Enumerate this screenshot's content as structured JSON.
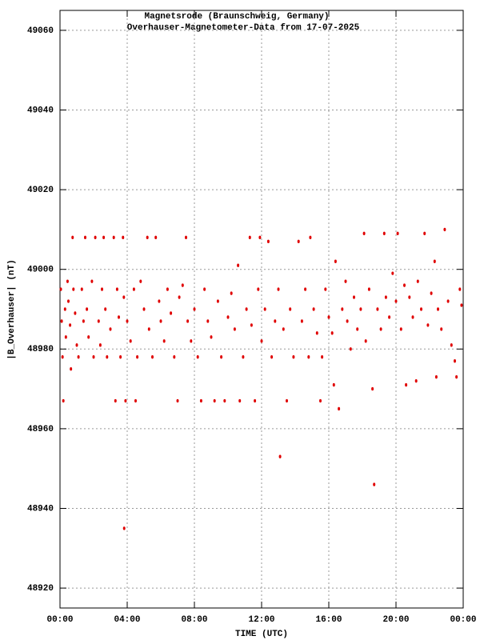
{
  "chart_data": {
    "type": "scatter",
    "title": "Magnetsrode (Braunschweig, Germany)",
    "subtitle": "Overhauser-Magnetometer-Data from 17-07-2025",
    "x_label": "TIME (UTC)",
    "y_label": "|B_Overhauser| (nT)",
    "color": "#e00000",
    "grid": true,
    "xlim": [
      0,
      24
    ],
    "xticks": [
      {
        "value": 0,
        "label": "00:00"
      },
      {
        "value": 4,
        "label": "04:00"
      },
      {
        "value": 8,
        "label": "08:00"
      },
      {
        "value": 12,
        "label": "12:00"
      },
      {
        "value": 16,
        "label": "16:00"
      },
      {
        "value": 20,
        "label": "20:00"
      },
      {
        "value": 24,
        "label": "00:00"
      }
    ],
    "ylim": [
      48915,
      49065
    ],
    "yticks": [
      48920,
      48940,
      48960,
      48980,
      49000,
      49020,
      49040,
      49060
    ],
    "x": [
      0.05,
      0.1,
      0.15,
      0.2,
      0.3,
      0.35,
      0.45,
      0.5,
      0.6,
      0.65,
      0.75,
      0.8,
      0.9,
      1.0,
      1.1,
      1.3,
      1.4,
      1.5,
      1.6,
      1.7,
      1.9,
      2.0,
      2.1,
      2.3,
      2.4,
      2.5,
      2.6,
      2.7,
      2.8,
      3.0,
      3.2,
      3.3,
      3.4,
      3.5,
      3.6,
      3.75,
      3.8,
      3.82,
      3.9,
      4.0,
      4.2,
      4.4,
      4.5,
      4.6,
      4.8,
      5.0,
      5.2,
      5.3,
      5.5,
      5.7,
      5.9,
      6.0,
      6.2,
      6.4,
      6.6,
      6.8,
      7.0,
      7.1,
      7.3,
      7.5,
      7.6,
      7.8,
      8.0,
      8.2,
      8.4,
      8.6,
      8.8,
      9.0,
      9.2,
      9.4,
      9.6,
      9.8,
      10.0,
      10.2,
      10.4,
      10.6,
      10.7,
      10.9,
      11.1,
      11.3,
      11.4,
      11.6,
      11.8,
      11.9,
      12.0,
      12.2,
      12.4,
      12.6,
      12.8,
      13.0,
      13.1,
      13.3,
      13.5,
      13.7,
      13.9,
      14.2,
      14.4,
      14.6,
      14.8,
      14.9,
      15.1,
      15.3,
      15.5,
      15.6,
      15.8,
      16.0,
      16.2,
      16.3,
      16.4,
      16.6,
      16.8,
      17.0,
      17.1,
      17.3,
      17.5,
      17.7,
      17.9,
      18.1,
      18.2,
      18.4,
      18.6,
      18.7,
      18.9,
      19.1,
      19.3,
      19.4,
      19.6,
      19.8,
      20.0,
      20.1,
      20.3,
      20.5,
      20.6,
      20.8,
      21.0,
      21.2,
      21.3,
      21.5,
      21.7,
      21.9,
      22.1,
      22.3,
      22.4,
      22.5,
      22.7,
      22.9,
      23.1,
      23.3,
      23.5,
      23.6,
      23.8,
      23.9
    ],
    "values": [
      48995,
      48987,
      48978,
      48967,
      48990,
      48983,
      48997,
      48992,
      48986,
      48975,
      49008,
      48995,
      48989,
      48981,
      48978,
      48995,
      48987,
      49008,
      48990,
      48983,
      48997,
      48978,
      49008,
      48987,
      48981,
      48995,
      49008,
      48990,
      48978,
      48985,
      49008,
      48967,
      48995,
      48988,
      48978,
      49008,
      48993,
      48935,
      48967,
      48987,
      48982,
      48995,
      48967,
      48978,
      48997,
      48990,
      49008,
      48985,
      48978,
      49008,
      48992,
      48987,
      48982,
      48995,
      48989,
      48978,
      48967,
      48993,
      48996,
      49008,
      48987,
      48982,
      48990,
      48978,
      48967,
      48995,
      48987,
      48983,
      48967,
      48992,
      48978,
      48967,
      48988,
      48994,
      48985,
      49001,
      48967,
      48978,
      48990,
      49008,
      48986,
      48967,
      48995,
      49008,
      48982,
      48990,
      49007,
      48978,
      48987,
      48995,
      48953,
      48985,
      48967,
      48990,
      48978,
      49007,
      48987,
      48995,
      48978,
      49008,
      48990,
      48984,
      48967,
      48978,
      48995,
      48988,
      48984,
      48971,
      49002,
      48965,
      48990,
      48997,
      48987,
      48980,
      48993,
      48985,
      48990,
      49009,
      48982,
      48995,
      48970,
      48946,
      48990,
      48985,
      49009,
      48993,
      48988,
      48999,
      48992,
      49009,
      48985,
      48996,
      48971,
      48993,
      48988,
      48972,
      48997,
      48990,
      49009,
      48986,
      48994,
      49002,
      48973,
      48990,
      48985,
      49010,
      48992,
      48981,
      48977,
      48973,
      48995,
      48991
    ]
  }
}
